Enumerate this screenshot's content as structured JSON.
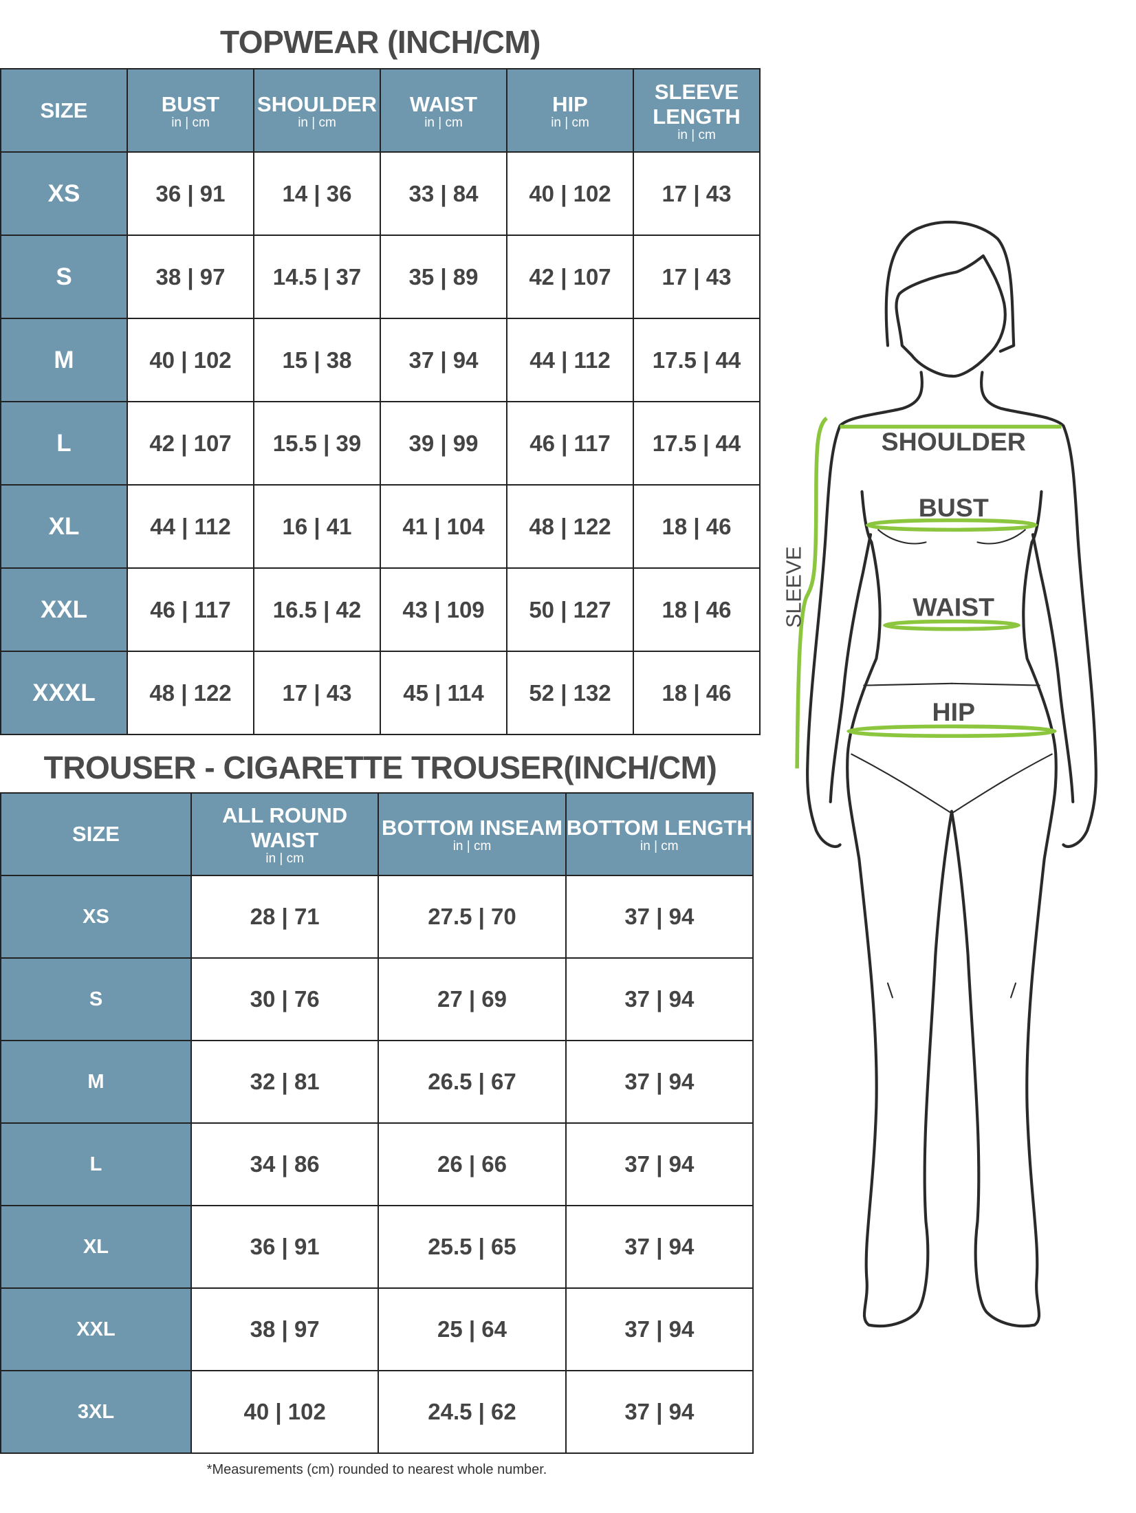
{
  "topwear": {
    "title": "TOPWEAR (INCH/CM)",
    "headers": [
      {
        "label": "SIZE",
        "unit": ""
      },
      {
        "label": "BUST",
        "unit": "in | cm"
      },
      {
        "label": "SHOULDER",
        "unit": "in | cm"
      },
      {
        "label": "WAIST",
        "unit": "in | cm"
      },
      {
        "label": "HIP",
        "unit": "in | cm"
      },
      {
        "label": "SLEEVE LENGTH",
        "unit": "in | cm"
      }
    ],
    "rows": [
      [
        "XS",
        "36 | 91",
        "14 | 36",
        "33 | 84",
        "40 | 102",
        "17 | 43"
      ],
      [
        "S",
        "38 | 97",
        "14.5 | 37",
        "35 | 89",
        "42 | 107",
        "17 | 43"
      ],
      [
        "M",
        "40 | 102",
        "15 | 38",
        "37 | 94",
        "44 | 112",
        "17.5 | 44"
      ],
      [
        "L",
        "42 | 107",
        "15.5 | 39",
        "39 | 99",
        "46 | 117",
        "17.5 | 44"
      ],
      [
        "XL",
        "44 | 112",
        "16 | 41",
        "41 | 104",
        "48 | 122",
        "18 | 46"
      ],
      [
        "XXL",
        "46 | 117",
        "16.5 | 42",
        "43 | 109",
        "50 | 127",
        "18 | 46"
      ],
      [
        "XXXL",
        "48 | 122",
        "17 | 43",
        "45 | 114",
        "52 | 132",
        "18 | 46"
      ]
    ]
  },
  "trouser": {
    "title": "TROUSER - CIGARETTE TROUSER(INCH/CM)",
    "headers": [
      {
        "label": "SIZE",
        "unit": ""
      },
      {
        "label": "ALL ROUND WAIST",
        "unit": "in | cm"
      },
      {
        "label": "BOTTOM INSEAM",
        "unit": "in | cm"
      },
      {
        "label": "BOTTOM LENGTH",
        "unit": "in | cm"
      }
    ],
    "rows": [
      [
        "XS",
        "28 | 71",
        "27.5 | 70",
        "37 | 94"
      ],
      [
        "S",
        "30 | 76",
        "27 | 69",
        "37 | 94"
      ],
      [
        "M",
        "32 | 81",
        "26.5 | 67",
        "37 | 94"
      ],
      [
        "L",
        "34 | 86",
        "26 | 66",
        "37 | 94"
      ],
      [
        "XL",
        "36 | 91",
        "25.5 | 65",
        "37 | 94"
      ],
      [
        "XXL",
        "38 | 97",
        "25 | 64",
        "37 | 94"
      ],
      [
        "3XL",
        "40 | 102",
        "24.5 | 62",
        "37 | 94"
      ]
    ]
  },
  "footnote": "*Measurements (cm) rounded to nearest whole number.",
  "figure": {
    "labels": {
      "shoulder": "SHOULDER",
      "bust": "BUST",
      "waist": "WAIST",
      "hip": "HIP",
      "sleeve": "SLEEVE"
    }
  },
  "colors": {
    "header_bg": "#6f98ae",
    "measure_line": "#8cc63f",
    "text": "#444444"
  }
}
